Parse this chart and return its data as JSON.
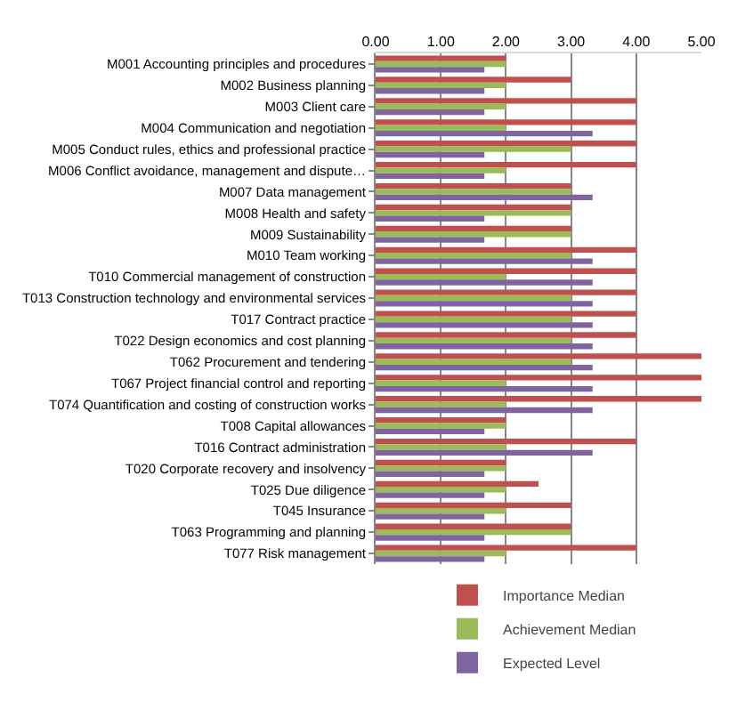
{
  "chart_data": {
    "type": "bar",
    "orientation": "horizontal",
    "categories": [
      "M001 Accounting principles and procedures",
      "M002 Business planning",
      "M003 Client care",
      "M004 Communication and negotiation",
      "M005 Conduct rules, ethics and professional practice",
      "M006 Conflict avoidance, management and dispute…",
      "M007 Data management",
      "M008 Health and safety",
      "M009 Sustainability",
      "M010 Team working",
      "T010 Commercial management of construction",
      "T013 Construction technology and environmental services",
      "T017 Contract practice",
      "T022 Design economics and cost planning",
      "T062 Procurement and tendering",
      "T067 Project financial control and reporting",
      "T074 Quantification and costing of construction works",
      "T008 Capital allowances",
      "T016 Contract administration",
      "T020 Corporate recovery and insolvency",
      "T025 Due diligence",
      "T045 Insurance",
      "T063 Programming and planning",
      "T077 Risk management"
    ],
    "series": [
      {
        "name": "Importance Median",
        "color": "#c0504d",
        "values": [
          2,
          3,
          4,
          4,
          4,
          4,
          3,
          3,
          3,
          4,
          4,
          4,
          4,
          4,
          5,
          5,
          5,
          2,
          4,
          2,
          2.5,
          3,
          3,
          4
        ]
      },
      {
        "name": "Achievement Median",
        "color": "#9bbb59",
        "values": [
          2,
          2,
          2,
          2,
          3,
          2,
          3,
          3,
          3,
          3,
          2,
          3,
          3,
          3,
          3,
          2,
          2,
          2,
          2,
          2,
          2,
          2,
          3,
          2
        ]
      },
      {
        "name": "Expected Level",
        "color": "#8064a2",
        "values": [
          1.67,
          1.67,
          1.67,
          3.33,
          1.67,
          1.67,
          3.33,
          1.67,
          1.67,
          3.33,
          3.33,
          3.33,
          3.33,
          3.33,
          3.33,
          3.33,
          3.33,
          1.67,
          3.33,
          1.67,
          1.67,
          1.67,
          1.67,
          1.67
        ]
      }
    ],
    "xlim": [
      0,
      5
    ],
    "xticks": [
      {
        "value": 0,
        "label": "0.00"
      },
      {
        "value": 1,
        "label": "1.00"
      },
      {
        "value": 2,
        "label": "2.00"
      },
      {
        "value": 3,
        "label": "3.00"
      },
      {
        "value": 4,
        "label": "4.00"
      },
      {
        "value": 5,
        "label": "5.00"
      }
    ],
    "grid": "x",
    "legend": "bottom"
  }
}
